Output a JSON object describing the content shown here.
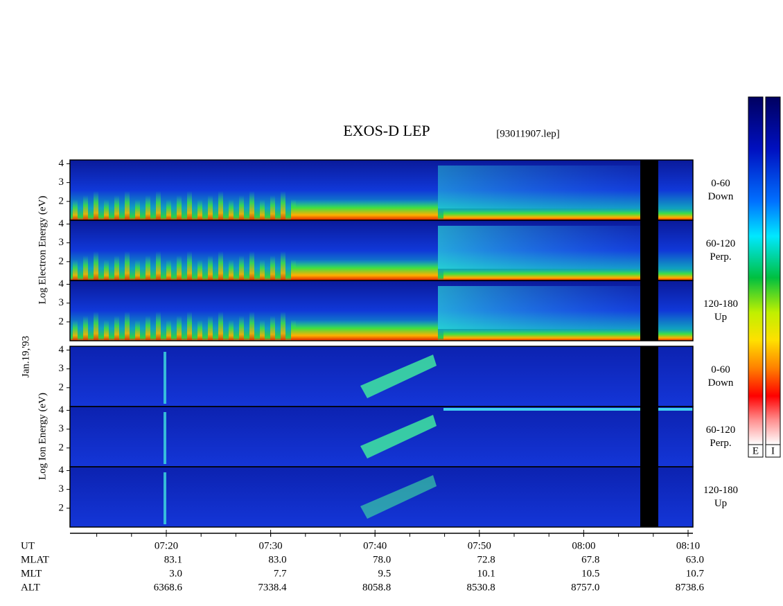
{
  "title": "EXOS-D LEP",
  "file": "[93011907.lep]",
  "date": "Jan.19,'93",
  "electron_label": "Log Electron Energy (eV)",
  "ion_label": "Log Ion Energy (eV)",
  "ylim": [
    1,
    4.2
  ],
  "electron_panels": [
    {
      "range": "0-60",
      "direction": "Down",
      "yticks": [
        4,
        3,
        2
      ]
    },
    {
      "range": "60-120",
      "direction": "Perp.",
      "yticks": [
        4,
        3,
        2
      ]
    },
    {
      "range": "120-180",
      "direction": "Up",
      "yticks": [
        4,
        3,
        2
      ]
    }
  ],
  "ion_panels": [
    {
      "range": "0-60",
      "direction": "Down",
      "yticks": [
        4,
        3,
        2
      ]
    },
    {
      "range": "60-120",
      "direction": "Perp.",
      "yticks": [
        4,
        3,
        2
      ]
    },
    {
      "range": "120-180",
      "direction": "Up",
      "yticks": [
        4,
        3,
        2
      ]
    }
  ],
  "colorbar_labels": [
    "E",
    "I"
  ],
  "time_axis": {
    "label": "UT",
    "ticks": [
      "07:20",
      "07:30",
      "07:40",
      "07:50",
      "08:00",
      "08:10"
    ]
  },
  "ephemeris": [
    {
      "label": "MLAT",
      "values": [
        "83.1",
        "83.0",
        "78.0",
        "72.8",
        "67.8",
        "63.0"
      ]
    },
    {
      "label": "MLT",
      "values": [
        "3.0",
        "7.7",
        "9.5",
        "10.1",
        "10.5",
        "10.7"
      ]
    },
    {
      "label": "ALT",
      "values": [
        "6368.6",
        "7338.4",
        "8058.8",
        "8530.8",
        "8757.0",
        "8738.6"
      ]
    }
  ]
}
